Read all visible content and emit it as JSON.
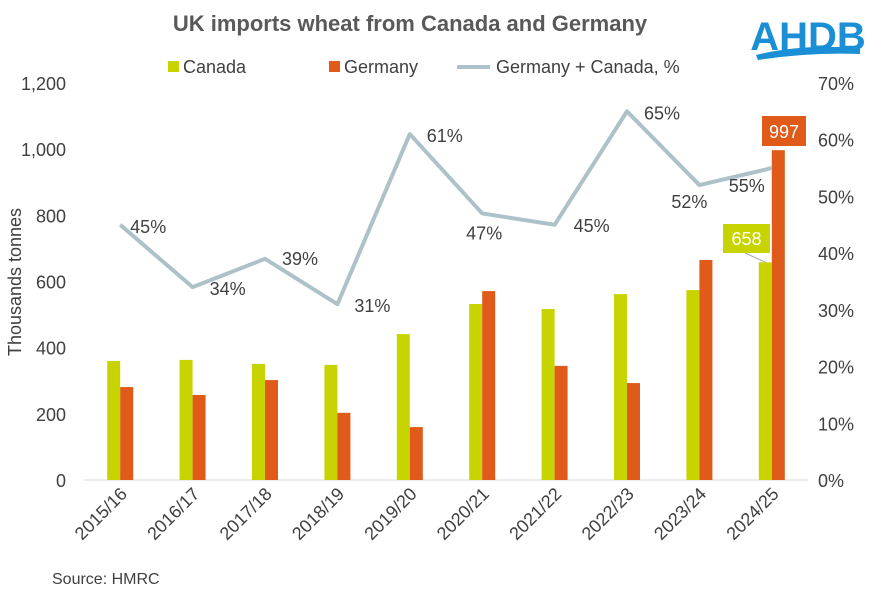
{
  "chart_data": {
    "type": "bar+line",
    "title": "UK imports wheat from Canada and Germany",
    "ylabel": "Thousands tonnes",
    "y2label": "",
    "ylim": [
      0,
      1200
    ],
    "y2lim": [
      0,
      70
    ],
    "yticks": [
      "0",
      "200",
      "400",
      "600",
      "800",
      "1,000",
      "1,200"
    ],
    "y2ticks": [
      "0%",
      "10%",
      "20%",
      "30%",
      "40%",
      "50%",
      "60%",
      "70%"
    ],
    "grid": false,
    "legend_position": "top",
    "categories": [
      "2015/16",
      "2016/17",
      "2017/18",
      "2018/19",
      "2019/20",
      "2020/21",
      "2021/22",
      "2022/23",
      "2023/24",
      "2024/25"
    ],
    "series": [
      {
        "name": "Canada",
        "type": "bar",
        "axis": "left",
        "color": "#c8d400",
        "values": [
          360,
          363,
          351,
          348,
          441,
          532,
          517,
          562,
          574,
          658
        ]
      },
      {
        "name": "Germany",
        "type": "bar",
        "axis": "left",
        "color": "#e05a1a",
        "values": [
          281,
          257,
          302,
          203,
          160,
          571,
          345,
          293,
          665,
          997
        ]
      },
      {
        "name": "Germany + Canada, %",
        "type": "line",
        "axis": "right",
        "color": "#adc1c8",
        "values": [
          45,
          34,
          39,
          31,
          61,
          47,
          45,
          65,
          52,
          55
        ],
        "labels": [
          "45%",
          "34%",
          "39%",
          "31%",
          "61%",
          "47%",
          "45%",
          "65%",
          "52%",
          "55%"
        ]
      }
    ],
    "data_labels": [
      {
        "series": "Canada",
        "category": "2024/25",
        "text": "658"
      },
      {
        "series": "Germany",
        "category": "2024/25",
        "text": "997"
      }
    ],
    "source": "Source: HMRC"
  },
  "logo": {
    "text": "AHDB",
    "color": "#1a8fd6"
  }
}
